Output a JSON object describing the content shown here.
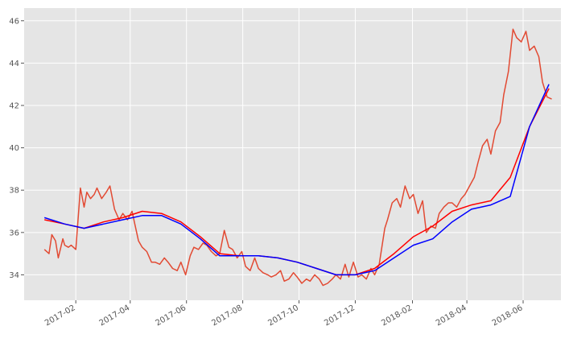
{
  "chart_data": {
    "type": "line",
    "title": "",
    "xlabel": "",
    "ylabel": "",
    "x_range": [
      "2016-12-07",
      "2018-07-12"
    ],
    "ylim": [
      32.8,
      46.6
    ],
    "y_ticks": [
      34,
      36,
      38,
      40,
      42,
      44,
      46
    ],
    "x_ticks": [
      {
        "date": "2017-02-01",
        "label": "2017-02"
      },
      {
        "date": "2017-04-01",
        "label": "2017-04"
      },
      {
        "date": "2017-06-01",
        "label": "2017-06"
      },
      {
        "date": "2017-08-01",
        "label": "2017-08"
      },
      {
        "date": "2017-10-01",
        "label": "2017-10"
      },
      {
        "date": "2017-12-01",
        "label": "2017-12"
      },
      {
        "date": "2018-02-01",
        "label": "2018-02"
      },
      {
        "date": "2018-04-01",
        "label": "2018-04"
      },
      {
        "date": "2018-06-01",
        "label": "2018-06"
      }
    ],
    "grid": true,
    "legend": "none",
    "background": "#e5e5e5",
    "series": [
      {
        "color": "#e24a33",
        "x": [
          "2016-12-29",
          "2017-01-03",
          "2017-01-06",
          "2017-01-10",
          "2017-01-13",
          "2017-01-18",
          "2017-01-20",
          "2017-01-24",
          "2017-01-27",
          "2017-02-01",
          "2017-02-06",
          "2017-02-10",
          "2017-02-13",
          "2017-02-17",
          "2017-02-21",
          "2017-02-24",
          "2017-03-01",
          "2017-03-06",
          "2017-03-10",
          "2017-03-15",
          "2017-03-20",
          "2017-03-24",
          "2017-03-29",
          "2017-04-03",
          "2017-04-06",
          "2017-04-10",
          "2017-04-14",
          "2017-04-19",
          "2017-04-24",
          "2017-04-28",
          "2017-05-03",
          "2017-05-08",
          "2017-05-12",
          "2017-05-17",
          "2017-05-22",
          "2017-05-26",
          "2017-05-31",
          "2017-06-05",
          "2017-06-09",
          "2017-06-14",
          "2017-06-19",
          "2017-06-23",
          "2017-06-28",
          "2017-07-03",
          "2017-07-07",
          "2017-07-12",
          "2017-07-17",
          "2017-07-21",
          "2017-07-26",
          "2017-07-31",
          "2017-08-04",
          "2017-08-09",
          "2017-08-14",
          "2017-08-18",
          "2017-08-23",
          "2017-08-28",
          "2017-09-01",
          "2017-09-06",
          "2017-09-11",
          "2017-09-15",
          "2017-09-20",
          "2017-09-25",
          "2017-09-29",
          "2017-10-04",
          "2017-10-09",
          "2017-10-13",
          "2017-10-18",
          "2017-10-23",
          "2017-10-27",
          "2017-11-01",
          "2017-11-06",
          "2017-11-10",
          "2017-11-15",
          "2017-11-20",
          "2017-11-24",
          "2017-11-29",
          "2017-12-04",
          "2017-12-08",
          "2017-12-13",
          "2017-12-18",
          "2017-12-22",
          "2017-12-27",
          "2018-01-02",
          "2018-01-05",
          "2018-01-10",
          "2018-01-15",
          "2018-01-19",
          "2018-01-24",
          "2018-01-29",
          "2018-02-02",
          "2018-02-07",
          "2018-02-12",
          "2018-02-16",
          "2018-02-21",
          "2018-02-26",
          "2018-03-02",
          "2018-03-07",
          "2018-03-12",
          "2018-03-16",
          "2018-03-21",
          "2018-03-26",
          "2018-03-30",
          "2018-04-04",
          "2018-04-09",
          "2018-04-13",
          "2018-04-18",
          "2018-04-23",
          "2018-04-27",
          "2018-05-02",
          "2018-05-07",
          "2018-05-11",
          "2018-05-16",
          "2018-05-21",
          "2018-05-25",
          "2018-05-30",
          "2018-06-04",
          "2018-06-08",
          "2018-06-13",
          "2018-06-18",
          "2018-06-22",
          "2018-06-27",
          "2018-07-02"
        ],
        "values": [
          35.2,
          35.0,
          35.9,
          35.6,
          34.8,
          35.7,
          35.4,
          35.3,
          35.4,
          35.2,
          38.1,
          37.2,
          37.9,
          37.6,
          37.8,
          38.1,
          37.6,
          37.9,
          38.2,
          37.1,
          36.6,
          36.9,
          36.6,
          37.0,
          36.4,
          35.6,
          35.3,
          35.1,
          34.6,
          34.6,
          34.5,
          34.8,
          34.6,
          34.3,
          34.2,
          34.6,
          34.0,
          34.9,
          35.3,
          35.2,
          35.5,
          35.4,
          35.1,
          34.9,
          35.0,
          36.1,
          35.3,
          35.2,
          34.8,
          35.1,
          34.4,
          34.2,
          34.8,
          34.3,
          34.1,
          34.0,
          33.9,
          34.0,
          34.2,
          33.7,
          33.8,
          34.1,
          33.9,
          33.6,
          33.8,
          33.7,
          34.0,
          33.8,
          33.5,
          33.6,
          33.8,
          34.0,
          33.8,
          34.5,
          33.9,
          34.6,
          33.9,
          34.0,
          33.8,
          34.3,
          34.0,
          34.5,
          36.2,
          36.6,
          37.4,
          37.6,
          37.2,
          38.2,
          37.6,
          37.8,
          36.9,
          37.5,
          36.0,
          36.3,
          36.2,
          36.9,
          37.2,
          37.4,
          37.4,
          37.2,
          37.6,
          37.8,
          38.2,
          38.6,
          39.3,
          40.1,
          40.4,
          39.7,
          40.8,
          41.2,
          42.5,
          43.6,
          45.6,
          45.2,
          45.0,
          45.5,
          44.6,
          44.8,
          44.3,
          43.1,
          42.4,
          42.3
        ]
      },
      {
        "color": "#ff0000",
        "x": [
          "2016-12-29",
          "2017-01-20",
          "2017-02-10",
          "2017-03-03",
          "2017-03-24",
          "2017-04-14",
          "2017-05-05",
          "2017-05-26",
          "2017-06-16",
          "2017-07-07",
          "2017-07-28",
          "2017-08-18",
          "2017-09-08",
          "2017-09-29",
          "2017-10-20",
          "2017-11-10",
          "2017-12-01",
          "2017-12-22",
          "2018-01-12",
          "2018-02-02",
          "2018-02-23",
          "2018-03-16",
          "2018-04-06",
          "2018-04-27",
          "2018-05-18",
          "2018-06-08",
          "2018-06-29"
        ],
        "values": [
          36.6,
          36.4,
          36.2,
          36.5,
          36.7,
          37.0,
          36.9,
          36.5,
          35.8,
          35.0,
          34.9,
          34.9,
          34.8,
          34.6,
          34.3,
          34.0,
          34.0,
          34.3,
          35.0,
          35.8,
          36.3,
          37.0,
          37.3,
          37.5,
          38.6,
          41.0,
          42.8
        ]
      },
      {
        "color": "#0000ff",
        "x": [
          "2016-12-29",
          "2017-01-20",
          "2017-02-10",
          "2017-03-03",
          "2017-03-24",
          "2017-04-14",
          "2017-05-05",
          "2017-05-26",
          "2017-06-16",
          "2017-07-07",
          "2017-07-28",
          "2017-08-18",
          "2017-09-08",
          "2017-09-29",
          "2017-10-20",
          "2017-11-10",
          "2017-12-01",
          "2017-12-22",
          "2018-01-12",
          "2018-02-02",
          "2018-02-23",
          "2018-03-16",
          "2018-04-06",
          "2018-04-27",
          "2018-05-18",
          "2018-06-08",
          "2018-06-29"
        ],
        "values": [
          36.7,
          36.4,
          36.2,
          36.4,
          36.6,
          36.8,
          36.8,
          36.4,
          35.7,
          34.9,
          34.9,
          34.9,
          34.8,
          34.6,
          34.3,
          34.0,
          34.0,
          34.2,
          34.8,
          35.4,
          35.7,
          36.5,
          37.1,
          37.3,
          37.7,
          41.0,
          43.0
        ]
      }
    ]
  }
}
